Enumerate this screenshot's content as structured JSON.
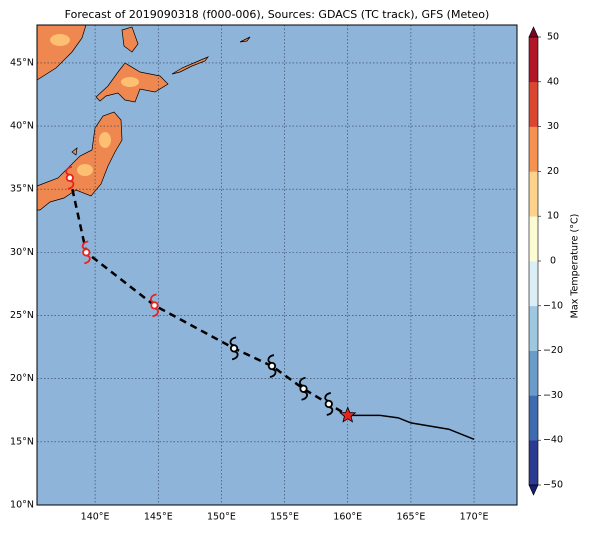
{
  "map": {
    "type": "map",
    "title": "Forecast of 2019090318 (f000-006), Sources: GDACS (TC track), GFS (Meteo)",
    "xlim": [
      135.4,
      173.4
    ],
    "ylim": [
      10,
      48
    ],
    "xticks": [
      {
        "value": 140,
        "label": "140°E"
      },
      {
        "value": 145,
        "label": "145°E"
      },
      {
        "value": 150,
        "label": "150°E"
      },
      {
        "value": 155,
        "label": "155°E"
      },
      {
        "value": 160,
        "label": "160°E"
      },
      {
        "value": 165,
        "label": "165°E"
      },
      {
        "value": 170,
        "label": "170°E"
      }
    ],
    "yticks": [
      {
        "value": 10,
        "label": "10°N"
      },
      {
        "value": 15,
        "label": "15°N"
      },
      {
        "value": 20,
        "label": "20°N"
      },
      {
        "value": 25,
        "label": "25°N"
      },
      {
        "value": 30,
        "label": "30°N"
      },
      {
        "value": 35,
        "label": "35°N"
      },
      {
        "value": 40,
        "label": "40°N"
      },
      {
        "value": 45,
        "label": "45°N"
      }
    ],
    "grid": true,
    "ocean_color": "#8fb4d9",
    "track_forecast": {
      "lon": [
        138.2,
        139.3,
        144.7,
        151,
        154,
        156.5,
        158.5,
        160
      ],
      "lat": [
        35,
        30,
        25.8,
        22.4,
        21,
        19.2,
        18,
        17.1
      ]
    },
    "track_past": {
      "lon": [
        160,
        162.5,
        164,
        165,
        168,
        170
      ],
      "lat": [
        17.1,
        17.1,
        16.9,
        16.5,
        16,
        15.2
      ]
    },
    "storm_symbols": {
      "lon": [
        138,
        139.3,
        144.7,
        151,
        154,
        156.5,
        158.5
      ],
      "lat": [
        35.9,
        30,
        25.8,
        22.4,
        21,
        19.2,
        18
      ],
      "colors": [
        "#e8231e",
        "#e8231e",
        "#e8231e",
        "#000000",
        "#000000",
        "#000000",
        "#000000"
      ]
    },
    "current_position": {
      "lon": 160,
      "lat": 17.1,
      "color": "#e8231e"
    },
    "colorbar": {
      "label": "Max Temperature (°C)",
      "lim": [
        -50,
        50
      ],
      "ticks": [
        {
          "value": -50,
          "label": "−50"
        },
        {
          "value": -40,
          "label": "−40"
        },
        {
          "value": -30,
          "label": "−30"
        },
        {
          "value": -20,
          "label": "−20"
        },
        {
          "value": -10,
          "label": "−10"
        },
        0,
        10,
        20,
        30,
        40,
        50
      ],
      "colors": [
        "#2b3a93",
        "#3f6bb0",
        "#6a9ccb",
        "#9ec8e0",
        "#dceef5",
        "#fdfbd2",
        "#fdd28a",
        "#f6924f",
        "#dc4630",
        "#b41427"
      ],
      "extend_colors": [
        "#171f6e",
        "#7e0024"
      ]
    }
  }
}
